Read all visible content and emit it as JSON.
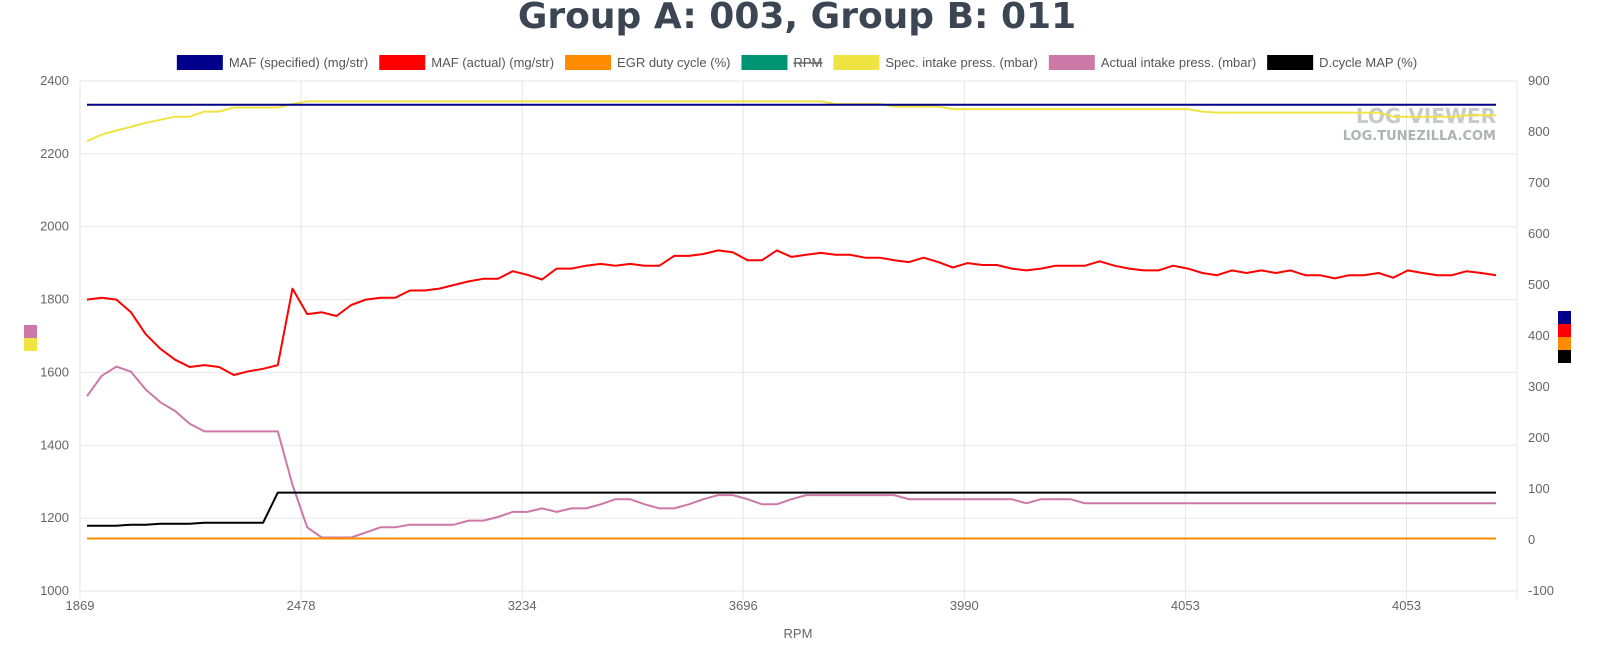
{
  "chart_data": {
    "type": "line",
    "title": "Group A: 003, Group B: 011",
    "xlabel": "RPM",
    "x_ticks": [
      "1869",
      "2478",
      "3234",
      "3696",
      "3990",
      "4053",
      "4053"
    ],
    "y_left": {
      "lim": [
        1000,
        2400
      ],
      "ticks": [
        "1000",
        "1200",
        "1400",
        "1600",
        "1800",
        "2000",
        "2200",
        "2400"
      ]
    },
    "y_right": {
      "lim": [
        -100,
        900
      ],
      "ticks": [
        "-100",
        "0",
        "100",
        "200",
        "300",
        "400",
        "500",
        "600",
        "700",
        "800",
        "900"
      ]
    },
    "series": [
      {
        "name": "MAF (specified) (mg/str)",
        "color": "#00008b",
        "axis": "left",
        "hidden": false,
        "values": [
          2335,
          2335,
          2335,
          2335,
          2335,
          2335,
          2335,
          2335,
          2335,
          2335,
          2335,
          2335,
          2335,
          2335,
          2335,
          2335,
          2335,
          2335,
          2335,
          2335,
          2335,
          2335,
          2335,
          2335,
          2335,
          2335,
          2335,
          2335,
          2335,
          2335,
          2335,
          2335,
          2335,
          2335,
          2335,
          2335,
          2335,
          2335,
          2335,
          2335,
          2335,
          2335,
          2335,
          2335,
          2335,
          2335,
          2335,
          2335,
          2335,
          2335,
          2335,
          2335,
          2335,
          2335,
          2335,
          2335,
          2335,
          2335,
          2335,
          2335,
          2335,
          2335,
          2335,
          2335,
          2335,
          2335,
          2335,
          2335,
          2335,
          2335,
          2335,
          2335,
          2335,
          2335,
          2335,
          2335,
          2335,
          2335,
          2335,
          2335,
          2335,
          2335,
          2335,
          2335,
          2335,
          2335,
          2335,
          2335,
          2335,
          2335
        ]
      },
      {
        "name": "MAF (actual) (mg/str)",
        "color": "#ff0000",
        "axis": "left",
        "hidden": false,
        "values": [
          1800,
          1805,
          1800,
          1765,
          1705,
          1665,
          1635,
          1615,
          1620,
          1615,
          1593,
          1603,
          1610,
          1620,
          1830,
          1760,
          1765,
          1755,
          1785,
          1800,
          1805,
          1805,
          1825,
          1825,
          1830,
          1840,
          1850,
          1857,
          1857,
          1878,
          1868,
          1855,
          1885,
          1885,
          1893,
          1898,
          1893,
          1898,
          1893,
          1893,
          1920,
          1920,
          1925,
          1935,
          1930,
          1908,
          1908,
          1935,
          1917,
          1923,
          1928,
          1923,
          1923,
          1915,
          1915,
          1908,
          1903,
          1915,
          1903,
          1888,
          1900,
          1895,
          1895,
          1885,
          1880,
          1885,
          1893,
          1893,
          1893,
          1905,
          1893,
          1885,
          1880,
          1880,
          1893,
          1885,
          1873,
          1867,
          1880,
          1873,
          1880,
          1873,
          1880,
          1867,
          1867,
          1858,
          1867,
          1867,
          1873,
          1860,
          1880,
          1873,
          1867,
          1867,
          1878,
          1873,
          1867
        ]
      },
      {
        "name": "EGR duty cycle (%)",
        "color": "#ff8c00",
        "axis": "right",
        "hidden": false,
        "values": [
          3,
          3,
          3,
          3,
          3,
          3,
          3,
          3,
          3,
          3,
          3,
          3,
          3,
          3,
          3,
          3,
          3,
          3,
          3,
          3,
          3,
          3,
          3,
          3,
          3,
          3,
          3,
          3,
          3,
          3,
          3,
          3,
          3,
          3,
          3,
          3,
          3,
          3,
          3,
          3,
          3,
          3,
          3,
          3,
          3,
          3,
          3,
          3,
          3,
          3,
          3,
          3,
          3,
          3,
          3,
          3,
          3,
          3,
          3,
          3,
          3,
          3,
          3,
          3,
          3,
          3,
          3,
          3,
          3,
          3,
          3,
          3,
          3,
          3,
          3,
          3,
          3,
          3,
          3,
          3,
          3,
          3,
          3,
          3,
          3,
          3,
          3,
          3,
          3,
          3,
          3,
          3,
          3,
          3,
          3,
          3,
          3
        ]
      },
      {
        "name": "RPM",
        "color": "#009473",
        "axis": "left",
        "hidden": true,
        "values": []
      },
      {
        "name": "Spec. intake press. (mbar)",
        "color": "#f0e442",
        "axis": "right",
        "hidden": false,
        "values": [
          782,
          795,
          803,
          810,
          818,
          824,
          830,
          830,
          840,
          840,
          848,
          848,
          848,
          848,
          855,
          860,
          860,
          860,
          860,
          860,
          860,
          860,
          860,
          860,
          860,
          860,
          860,
          860,
          860,
          860,
          860,
          860,
          860,
          860,
          860,
          860,
          860,
          860,
          860,
          860,
          860,
          860,
          860,
          860,
          860,
          860,
          860,
          860,
          860,
          860,
          860,
          855,
          855,
          855,
          855,
          850,
          850,
          850,
          850,
          845,
          845,
          845,
          845,
          845,
          845,
          845,
          845,
          845,
          845,
          845,
          845,
          845,
          845,
          845,
          845,
          845,
          840,
          838,
          838,
          838,
          838,
          838,
          838,
          838,
          838,
          838,
          838,
          838,
          838,
          830,
          830,
          830,
          830,
          830,
          833,
          833,
          833
        ]
      },
      {
        "name": "Actual intake press. (mbar)",
        "color": "#cc79a7",
        "axis": "right",
        "hidden": false,
        "values": [
          282,
          322,
          340,
          330,
          295,
          270,
          253,
          228,
          213,
          213,
          213,
          213,
          213,
          213,
          108,
          25,
          5,
          5,
          5,
          15,
          25,
          25,
          30,
          30,
          30,
          30,
          38,
          38,
          45,
          55,
          55,
          62,
          55,
          62,
          62,
          70,
          80,
          80,
          70,
          62,
          62,
          70,
          80,
          88,
          88,
          80,
          70,
          70,
          80,
          88,
          88,
          88,
          88,
          88,
          88,
          88,
          80,
          80,
          80,
          80,
          80,
          80,
          80,
          80,
          72,
          80,
          80,
          80,
          72,
          72,
          72,
          72,
          72,
          72,
          72,
          72,
          72,
          72,
          72,
          72,
          72,
          72,
          72,
          72,
          72,
          72,
          72,
          72,
          72,
          72,
          72,
          72,
          72,
          72,
          72,
          72,
          72
        ]
      },
      {
        "name": "D.cycle MAP (%)",
        "color": "#000000",
        "axis": "right",
        "hidden": false,
        "values": [
          28,
          28,
          28,
          30,
          30,
          32,
          32,
          32,
          34,
          34,
          34,
          34,
          34,
          93,
          93,
          93,
          93,
          93,
          93,
          93,
          93,
          93,
          93,
          93,
          93,
          93,
          93,
          93,
          93,
          93,
          93,
          93,
          93,
          93,
          93,
          93,
          93,
          93,
          93,
          93,
          93,
          93,
          93,
          93,
          93,
          93,
          93,
          93,
          93,
          93,
          93,
          93,
          93,
          93,
          93,
          93,
          93,
          93,
          93,
          93,
          93,
          93,
          93,
          93,
          93,
          93,
          93,
          93,
          93,
          93,
          93,
          93,
          93,
          93,
          93,
          93,
          93,
          93,
          93,
          93,
          93,
          93,
          93,
          93,
          93,
          93,
          93,
          93,
          93,
          93,
          93,
          93,
          93,
          93,
          93,
          93,
          93
        ]
      }
    ]
  },
  "watermark": {
    "line1": "LOG VIEWER",
    "line2": "LOG.TUNEZILLA.COM"
  }
}
